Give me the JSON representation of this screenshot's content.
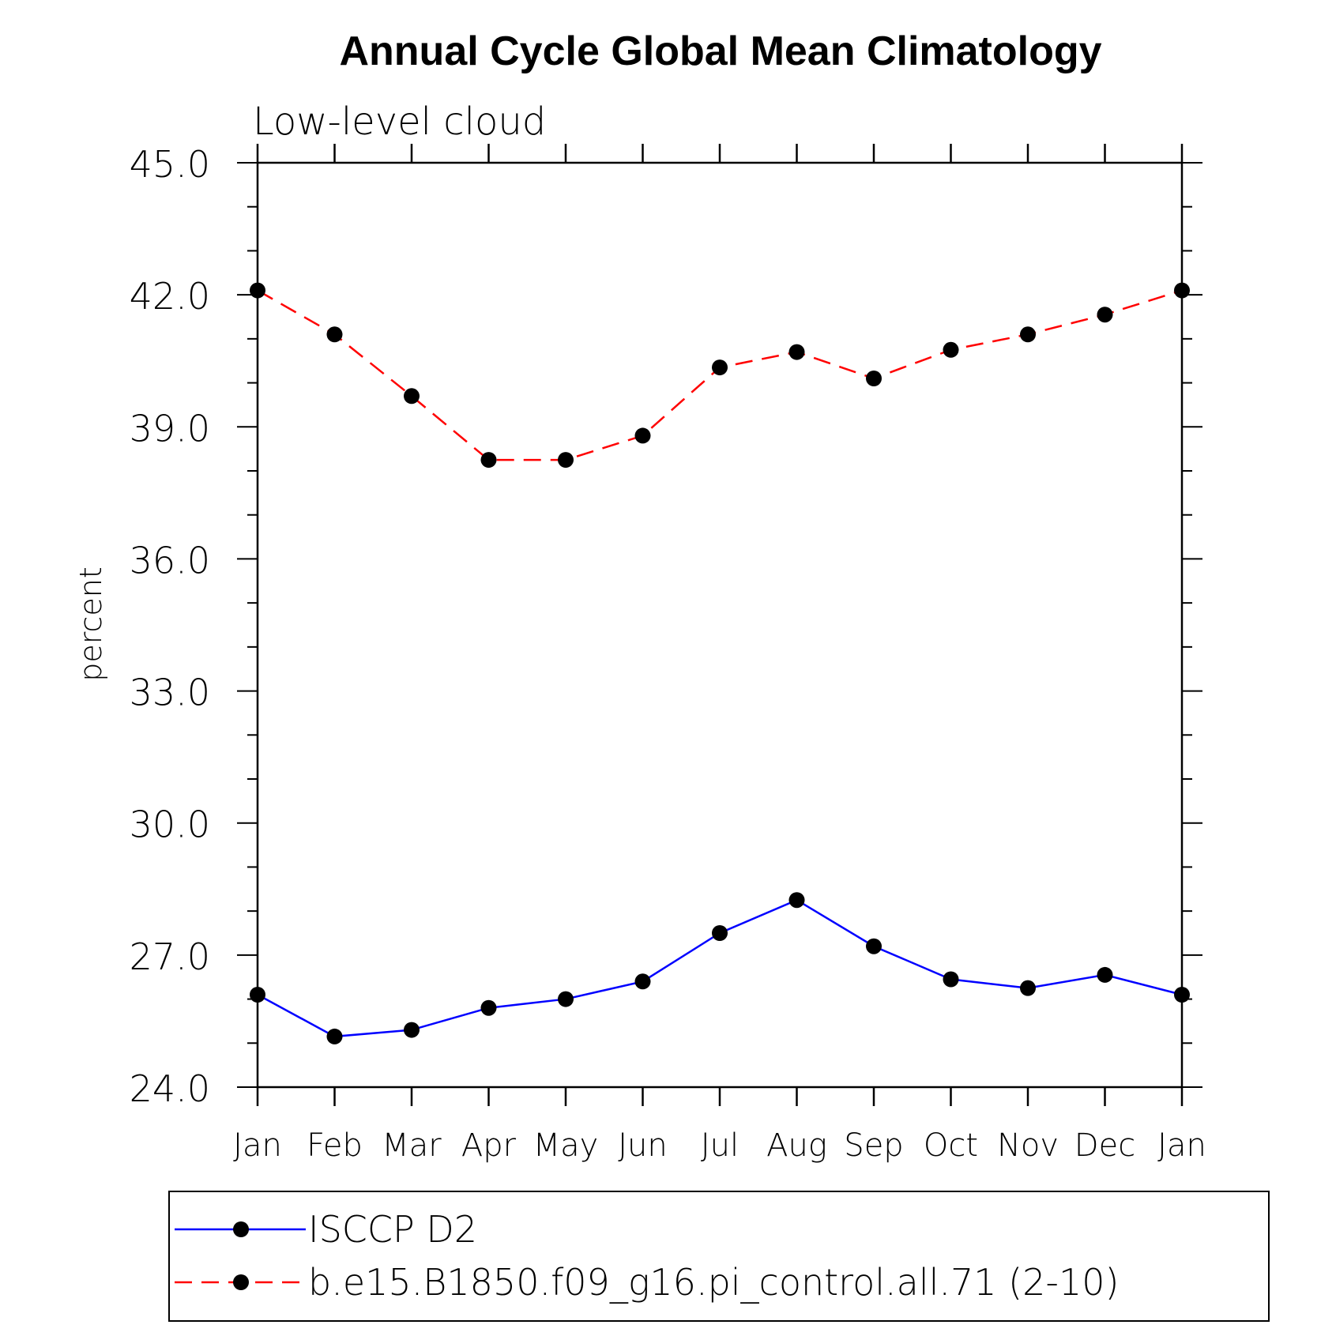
{
  "chart_data": {
    "type": "line",
    "title": "Annual Cycle Global Mean Climatology",
    "subtitle": "Low-level cloud",
    "xlabel": "",
    "ylabel": "percent",
    "categories": [
      "Jan",
      "Feb",
      "Mar",
      "Apr",
      "May",
      "Jun",
      "Jul",
      "Aug",
      "Sep",
      "Oct",
      "Nov",
      "Dec",
      "Jan"
    ],
    "ylim": [
      24,
      45
    ],
    "yticks": [
      "24.0",
      "27.0",
      "30.0",
      "33.0",
      "36.0",
      "39.0",
      "42.0",
      "45.0"
    ],
    "grid": false,
    "legend_position": "bottom",
    "series": [
      {
        "name": "ISCCP D2",
        "color": "#0000ff",
        "dash": "solid",
        "marker": "circle",
        "values": [
          26.1,
          25.15,
          25.3,
          25.8,
          26.0,
          26.4,
          27.5,
          28.25,
          27.2,
          26.45,
          26.25,
          26.55,
          26.1
        ]
      },
      {
        "name": "b.e15.B1850.f09_g16.pi_control.all.71 (2-10)",
        "color": "#ff0000",
        "dash": "dashed",
        "marker": "circle",
        "values": [
          42.1,
          41.1,
          39.7,
          38.25,
          38.25,
          38.8,
          40.35,
          40.7,
          40.1,
          40.75,
          41.1,
          41.55,
          42.1
        ]
      }
    ]
  }
}
